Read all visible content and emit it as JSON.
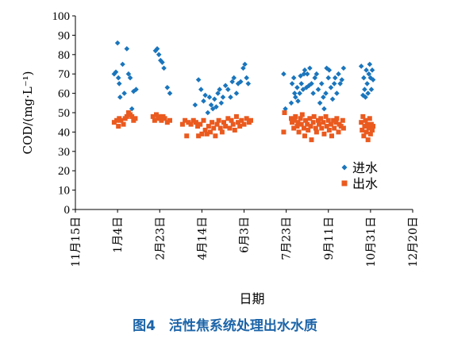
{
  "caption": "图4　活性焦系统处理出水水质",
  "chart_data": {
    "type": "scatter",
    "ylabel": "COD/(mg·L⁻¹)",
    "xlabel": "日期",
    "ylim": [
      0,
      100
    ],
    "yticks": [
      0,
      10,
      20,
      30,
      40,
      50,
      60,
      70,
      80,
      90,
      100
    ],
    "xlim": [
      "2018-11-15",
      "2019-12-20"
    ],
    "xticks": [
      "11月15日",
      "1月4日",
      "2月23日",
      "4月14日",
      "6月3日",
      "7月23日",
      "9月11日",
      "10月31日",
      "12月20日"
    ],
    "xtick_dates": [
      "2018-11-15",
      "2019-01-04",
      "2019-02-23",
      "2019-04-14",
      "2019-06-03",
      "2019-07-23",
      "2019-09-11",
      "2019-10-31",
      "2019-12-20"
    ],
    "grid": false,
    "legend": "right",
    "series": [
      {
        "name": "进水",
        "color": "#1a75bc",
        "marker": "diamond",
        "points": [
          [
            "2018-12-31",
            70
          ],
          [
            "2019-01-02",
            71
          ],
          [
            "2019-01-04",
            86
          ],
          [
            "2019-01-05",
            68
          ],
          [
            "2019-01-06",
            65
          ],
          [
            "2019-01-07",
            58
          ],
          [
            "2019-01-10",
            75
          ],
          [
            "2019-01-12",
            60
          ],
          [
            "2019-01-15",
            83
          ],
          [
            "2019-01-17",
            70
          ],
          [
            "2019-01-19",
            68
          ],
          [
            "2019-01-21",
            52
          ],
          [
            "2019-01-23",
            61
          ],
          [
            "2019-01-26",
            62
          ],
          [
            "2019-02-18",
            82
          ],
          [
            "2019-02-20",
            83
          ],
          [
            "2019-02-22",
            80
          ],
          [
            "2019-02-24",
            77
          ],
          [
            "2019-02-26",
            76
          ],
          [
            "2019-02-28",
            73
          ],
          [
            "2019-03-04",
            63
          ],
          [
            "2019-03-07",
            60
          ],
          [
            "2019-04-06",
            54
          ],
          [
            "2019-04-10",
            67
          ],
          [
            "2019-04-13",
            62
          ],
          [
            "2019-04-16",
            56
          ],
          [
            "2019-04-18",
            59
          ],
          [
            "2019-04-21",
            50
          ],
          [
            "2019-04-23",
            58
          ],
          [
            "2019-04-25",
            54
          ],
          [
            "2019-04-27",
            52
          ],
          [
            "2019-04-29",
            57
          ],
          [
            "2019-05-01",
            53
          ],
          [
            "2019-05-03",
            60
          ],
          [
            "2019-05-05",
            62
          ],
          [
            "2019-05-07",
            55
          ],
          [
            "2019-05-09",
            58
          ],
          [
            "2019-05-12",
            64
          ],
          [
            "2019-05-15",
            62
          ],
          [
            "2019-05-18",
            58
          ],
          [
            "2019-05-20",
            66
          ],
          [
            "2019-05-22",
            68
          ],
          [
            "2019-05-25",
            60
          ],
          [
            "2019-05-27",
            65
          ],
          [
            "2019-05-30",
            66
          ],
          [
            "2019-06-02",
            73
          ],
          [
            "2019-06-04",
            75
          ],
          [
            "2019-06-06",
            68
          ],
          [
            "2019-06-08",
            65
          ],
          [
            "2019-07-20",
            70
          ],
          [
            "2019-07-22",
            52
          ],
          [
            "2019-07-29",
            55
          ],
          [
            "2019-07-30",
            65
          ],
          [
            "2019-08-01",
            68
          ],
          [
            "2019-08-02",
            60
          ],
          [
            "2019-08-03",
            58
          ],
          [
            "2019-08-05",
            63
          ],
          [
            "2019-08-06",
            56
          ],
          [
            "2019-08-08",
            60
          ],
          [
            "2019-08-09",
            69
          ],
          [
            "2019-08-10",
            65
          ],
          [
            "2019-08-12",
            62
          ],
          [
            "2019-08-13",
            70
          ],
          [
            "2019-08-14",
            72
          ],
          [
            "2019-08-16",
            63
          ],
          [
            "2019-08-17",
            70
          ],
          [
            "2019-08-19",
            64
          ],
          [
            "2019-08-20",
            73
          ],
          [
            "2019-08-22",
            65
          ],
          [
            "2019-08-24",
            60
          ],
          [
            "2019-08-26",
            68
          ],
          [
            "2019-08-28",
            70
          ],
          [
            "2019-08-30",
            62
          ],
          [
            "2019-09-01",
            55
          ],
          [
            "2019-09-03",
            65
          ],
          [
            "2019-09-05",
            58
          ],
          [
            "2019-09-06",
            52
          ],
          [
            "2019-09-08",
            60
          ],
          [
            "2019-09-09",
            73
          ],
          [
            "2019-09-11",
            68
          ],
          [
            "2019-09-12",
            72
          ],
          [
            "2019-09-14",
            63
          ],
          [
            "2019-09-16",
            57
          ],
          [
            "2019-09-18",
            65
          ],
          [
            "2019-09-19",
            68
          ],
          [
            "2019-09-21",
            60
          ],
          [
            "2019-09-23",
            70
          ],
          [
            "2019-09-25",
            65
          ],
          [
            "2019-09-27",
            67
          ],
          [
            "2019-09-29",
            73
          ],
          [
            "2019-10-20",
            74
          ],
          [
            "2019-10-22",
            59
          ],
          [
            "2019-10-23",
            68
          ],
          [
            "2019-10-24",
            62
          ],
          [
            "2019-10-25",
            58
          ],
          [
            "2019-10-26",
            72
          ],
          [
            "2019-10-27",
            65
          ],
          [
            "2019-10-28",
            60
          ],
          [
            "2019-10-29",
            70
          ],
          [
            "2019-10-30",
            75
          ],
          [
            "2019-10-31",
            68
          ],
          [
            "2019-11-01",
            62
          ],
          [
            "2019-11-02",
            72
          ],
          [
            "2019-11-03",
            67
          ]
        ]
      },
      {
        "name": "出水",
        "color": "#ea5a1f",
        "marker": "square",
        "points": [
          [
            "2018-12-31",
            45
          ],
          [
            "2019-01-03",
            46
          ],
          [
            "2019-01-05",
            43
          ],
          [
            "2019-01-06",
            47
          ],
          [
            "2019-01-08",
            46
          ],
          [
            "2019-01-11",
            44
          ],
          [
            "2019-01-13",
            47
          ],
          [
            "2019-01-15",
            48
          ],
          [
            "2019-01-17",
            50
          ],
          [
            "2019-01-19",
            49
          ],
          [
            "2019-01-21",
            48
          ],
          [
            "2019-01-23",
            46
          ],
          [
            "2019-01-25",
            47
          ],
          [
            "2019-02-15",
            48
          ],
          [
            "2019-02-17",
            46
          ],
          [
            "2019-02-19",
            49
          ],
          [
            "2019-02-21",
            47
          ],
          [
            "2019-02-23",
            48
          ],
          [
            "2019-02-25",
            46
          ],
          [
            "2019-02-27",
            48
          ],
          [
            "2019-03-01",
            47
          ],
          [
            "2019-03-04",
            45
          ],
          [
            "2019-03-07",
            46
          ],
          [
            "2019-03-22",
            44
          ],
          [
            "2019-03-25",
            46
          ],
          [
            "2019-03-27",
            38
          ],
          [
            "2019-03-29",
            45
          ],
          [
            "2019-04-01",
            44
          ],
          [
            "2019-04-04",
            46
          ],
          [
            "2019-04-07",
            45
          ],
          [
            "2019-04-09",
            43
          ],
          [
            "2019-04-10",
            38
          ],
          [
            "2019-04-12",
            44
          ],
          [
            "2019-04-14",
            39
          ],
          [
            "2019-04-16",
            46
          ],
          [
            "2019-04-18",
            41
          ],
          [
            "2019-04-20",
            39
          ],
          [
            "2019-04-22",
            43
          ],
          [
            "2019-04-24",
            40
          ],
          [
            "2019-04-26",
            45
          ],
          [
            "2019-04-28",
            42
          ],
          [
            "2019-04-30",
            38
          ],
          [
            "2019-05-02",
            44
          ],
          [
            "2019-05-04",
            46
          ],
          [
            "2019-05-06",
            42
          ],
          [
            "2019-05-08",
            40
          ],
          [
            "2019-05-10",
            45
          ],
          [
            "2019-05-12",
            43
          ],
          [
            "2019-05-15",
            47
          ],
          [
            "2019-05-17",
            42
          ],
          [
            "2019-05-19",
            46
          ],
          [
            "2019-05-21",
            44
          ],
          [
            "2019-05-23",
            41
          ],
          [
            "2019-05-25",
            48
          ],
          [
            "2019-05-27",
            45
          ],
          [
            "2019-05-29",
            43
          ],
          [
            "2019-05-31",
            46
          ],
          [
            "2019-06-03",
            44
          ],
          [
            "2019-06-06",
            47
          ],
          [
            "2019-06-09",
            45
          ],
          [
            "2019-06-11",
            46
          ],
          [
            "2019-07-20",
            40
          ],
          [
            "2019-07-21",
            50
          ],
          [
            "2019-07-29",
            47
          ],
          [
            "2019-07-30",
            45
          ],
          [
            "2019-08-01",
            42
          ],
          [
            "2019-08-02",
            46
          ],
          [
            "2019-08-03",
            48
          ],
          [
            "2019-08-05",
            43
          ],
          [
            "2019-08-06",
            45
          ],
          [
            "2019-08-07",
            40
          ],
          [
            "2019-08-09",
            47
          ],
          [
            "2019-08-10",
            44
          ],
          [
            "2019-08-11",
            49
          ],
          [
            "2019-08-13",
            42
          ],
          [
            "2019-08-14",
            38
          ],
          [
            "2019-08-15",
            46
          ],
          [
            "2019-08-17",
            44
          ],
          [
            "2019-08-18",
            41
          ],
          [
            "2019-08-20",
            47
          ],
          [
            "2019-08-21",
            43
          ],
          [
            "2019-08-22",
            36
          ],
          [
            "2019-08-24",
            45
          ],
          [
            "2019-08-25",
            48
          ],
          [
            "2019-08-27",
            42
          ],
          [
            "2019-08-28",
            40
          ],
          [
            "2019-08-30",
            46
          ],
          [
            "2019-08-31",
            44
          ],
          [
            "2019-09-02",
            47
          ],
          [
            "2019-09-03",
            42
          ],
          [
            "2019-09-05",
            45
          ],
          [
            "2019-09-06",
            39
          ],
          [
            "2019-09-08",
            48
          ],
          [
            "2019-09-09",
            43
          ],
          [
            "2019-09-11",
            46
          ],
          [
            "2019-09-12",
            41
          ],
          [
            "2019-09-14",
            44
          ],
          [
            "2019-09-15",
            38
          ],
          [
            "2019-09-17",
            46
          ],
          [
            "2019-09-18",
            42
          ],
          [
            "2019-09-20",
            45
          ],
          [
            "2019-09-21",
            47
          ],
          [
            "2019-09-23",
            40
          ],
          [
            "2019-09-24",
            44
          ],
          [
            "2019-09-26",
            43
          ],
          [
            "2019-09-28",
            46
          ],
          [
            "2019-09-29",
            42
          ],
          [
            "2019-10-20",
            45
          ],
          [
            "2019-10-21",
            41
          ],
          [
            "2019-10-22",
            48
          ],
          [
            "2019-10-23",
            38
          ],
          [
            "2019-10-24",
            43
          ],
          [
            "2019-10-25",
            46
          ],
          [
            "2019-10-26",
            40
          ],
          [
            "2019-10-27",
            44
          ],
          [
            "2019-10-28",
            36
          ],
          [
            "2019-10-29",
            42
          ],
          [
            "2019-10-30",
            47
          ],
          [
            "2019-10-31",
            39
          ],
          [
            "2019-11-01",
            44
          ],
          [
            "2019-11-02",
            41
          ],
          [
            "2019-11-03",
            43
          ]
        ]
      }
    ]
  }
}
